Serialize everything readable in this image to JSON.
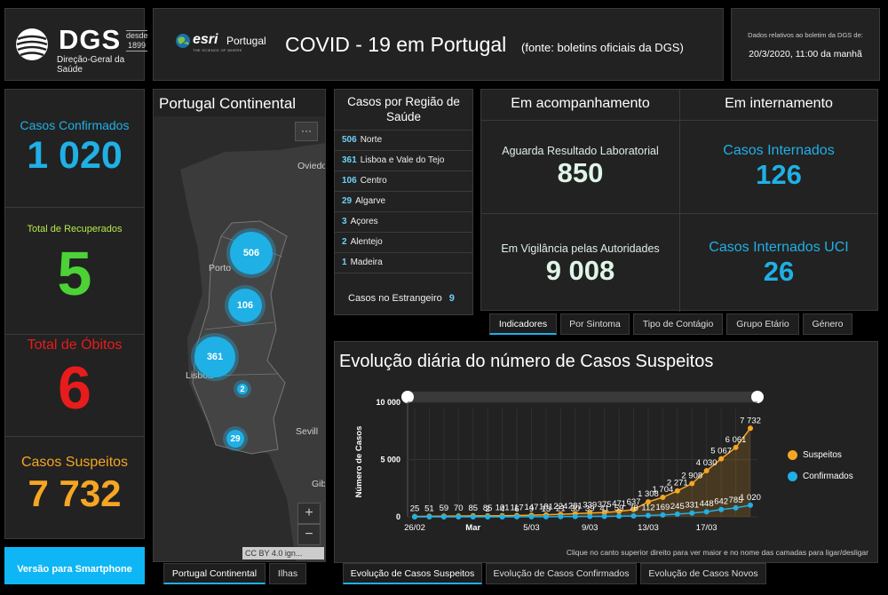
{
  "header": {
    "org_short": "DGS",
    "org_since": "desde 1899",
    "org_name": "Direção-Geral da Saúde",
    "partner_name": "esri",
    "partner_country": "Portugal",
    "partner_tagline": "THE SCIENCE OF WHERE",
    "title": "COVID - 19 em Portugal",
    "source": "(fonte: boletins oficiais da DGS)",
    "date_label": "Dados relativos ao boletim da DGS de:",
    "date_value": "20/3/2020, 11:00 da manhã"
  },
  "stats": [
    {
      "label": "Casos Confirmados",
      "value": "1 020",
      "color": "#1fb0e6"
    },
    {
      "label": "Total de Recuperados",
      "value": "5",
      "color": "#4cd137"
    },
    {
      "label": "Total de Óbitos",
      "value": "6",
      "color": "#e81c1c"
    },
    {
      "label": "Casos Suspeitos",
      "value": "7 732",
      "color": "#f5a623"
    }
  ],
  "smartphone_button": "Versão para Smartphone",
  "map": {
    "title": "Portugal Continental",
    "more_icon": "ellipsis-icon",
    "places": [
      "Oviedo",
      "Porto",
      "Lisboa",
      "Sevill",
      "Gib"
    ],
    "clusters": [
      "506",
      "106",
      "361",
      "2",
      "29"
    ],
    "zoom_in": "+",
    "zoom_out": "−",
    "attribution": "CC BY 4.0 ign...",
    "tabs": [
      "Portugal Continental",
      "Ilhas"
    ]
  },
  "regions": {
    "title": "Casos por Região de Saúde",
    "items": [
      {
        "count": "506",
        "name": "Norte"
      },
      {
        "count": "361",
        "name": "Lisboa e Vale do Tejo"
      },
      {
        "count": "106",
        "name": "Centro"
      },
      {
        "count": "29",
        "name": "Algarve"
      },
      {
        "count": "3",
        "name": "Açores"
      },
      {
        "count": "2",
        "name": "Alentejo"
      },
      {
        "count": "1",
        "name": "Madeira"
      }
    ],
    "abroad_label": "Casos no Estrangeiro",
    "abroad_count": "9"
  },
  "indicators": {
    "col1_title": "Em acompanhamento",
    "col2_title": "Em internamento",
    "waiting_label": "Aguarda Resultado Laboratorial",
    "waiting_value": "850",
    "surveillance_label": "Em Vigilância pelas Autoridades",
    "surveillance_value": "9 008",
    "hospital_label": "Casos Internados",
    "hospital_value": "126",
    "icu_label": "Casos Internados UCI",
    "icu_value": "26",
    "tabs": [
      "Indicadores",
      "Por Sintoma",
      "Tipo de Contágio",
      "Grupo Etário",
      "Género"
    ]
  },
  "chart_data": {
    "type": "line",
    "title": "Evolução diária do número de Casos Suspeitos",
    "ylabel": "Número de Casos",
    "ylim": [
      0,
      10000
    ],
    "y_ticks": [
      "0",
      "5 000",
      "10 000"
    ],
    "x_ticks": [
      "26/02",
      "Mar",
      "5/03",
      "9/03",
      "13/03",
      "17/03"
    ],
    "x_tick_index": [
      0,
      4,
      8,
      12,
      16,
      20
    ],
    "series": [
      {
        "name": "Suspeitos",
        "color": "#f5a623",
        "values": [
          25,
          51,
          59,
          70,
          85,
          85,
          101,
          117,
          147,
          181,
          224,
          281,
          339,
          375,
          471,
          637,
          1308,
          1704,
          2271,
          2908,
          4030,
          5067,
          6061,
          7732
        ],
        "labels": [
          "25",
          "51",
          "59",
          "70",
          "85",
          "85",
          "101",
          "117",
          "147",
          "181",
          "224",
          "281",
          "339",
          "375",
          "471",
          "637",
          "1 308",
          "1 704",
          "2 271",
          "2 908",
          "4 030",
          "5 067",
          "6 061",
          "7 732"
        ]
      },
      {
        "name": "Confirmados",
        "color": "#1fb0e6",
        "values": [
          0,
          0,
          0,
          0,
          0,
          2,
          4,
          6,
          9,
          13,
          21,
          30,
          39,
          41,
          59,
          78,
          112,
          169,
          245,
          331,
          448,
          642,
          785,
          1020
        ],
        "labels": [
          "",
          "",
          "",
          "",
          "",
          "2",
          "4",
          "6",
          "9",
          "13",
          "21",
          "30",
          "39",
          "41",
          "59",
          "78",
          "112",
          "169",
          "245",
          "331",
          "448",
          "642",
          "785",
          "1 020"
        ]
      }
    ],
    "legend": "right",
    "note": "Clique no canto superior direito para ver maior e no nome das camadas para ligar/desligar"
  },
  "chart_tabs": [
    "Evolução de Casos Suspeitos",
    "Evolução de Casos Confirmados",
    "Evolução de Casos Novos"
  ]
}
